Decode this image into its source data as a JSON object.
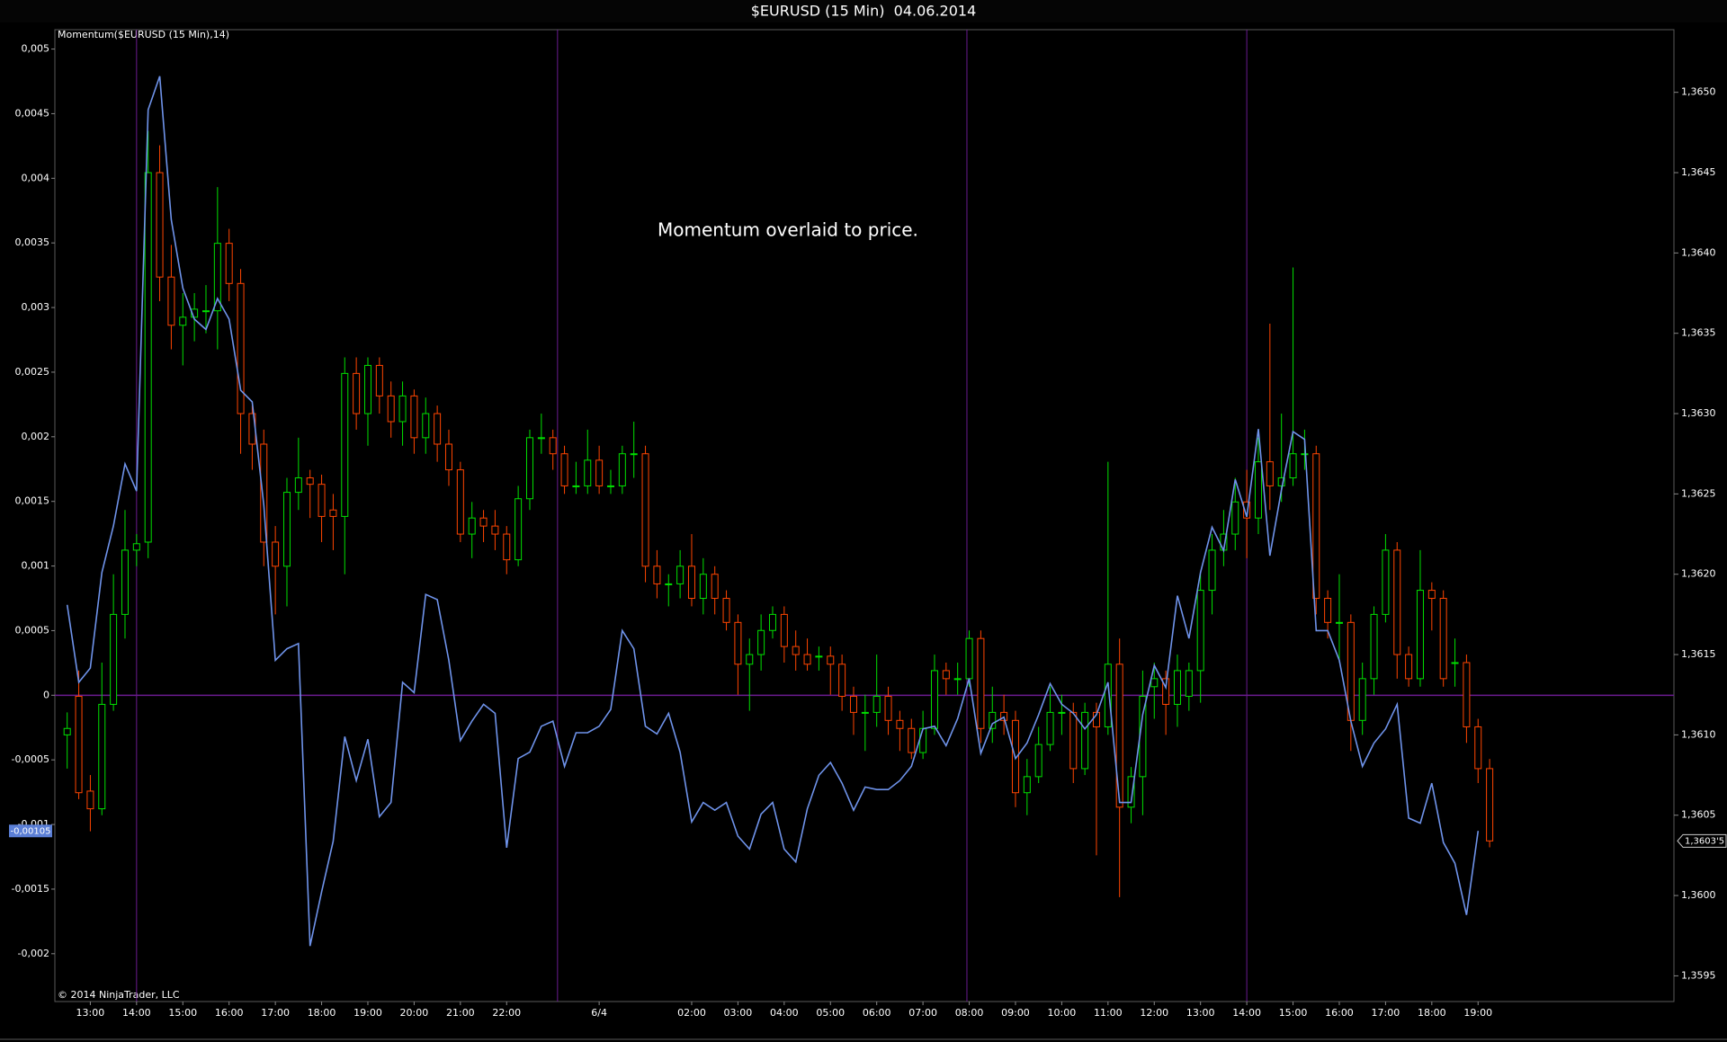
{
  "chart_data": {
    "type": "candlestick",
    "title": "$EURUSD (15 Min)  04.06.2014",
    "indicator_label": "Momentum($EURUSD (15 Min),14)",
    "annotation": "Momentum overlaid to price.",
    "copyright": "© 2014 NinjaTrader, LLC",
    "categories": [
      null,
      null,
      "13:00",
      null,
      null,
      null,
      "14:00",
      null,
      null,
      null,
      "15:00",
      null,
      null,
      null,
      "16:00",
      null,
      null,
      null,
      "17:00",
      null,
      null,
      null,
      "18:00",
      null,
      null,
      null,
      "19:00",
      null,
      null,
      null,
      "20:00",
      null,
      null,
      null,
      "21:00",
      null,
      null,
      null,
      "22:00",
      null,
      null,
      null,
      null,
      null,
      null,
      null,
      "6/4",
      null,
      null,
      null,
      null,
      null,
      null,
      null,
      "02:00",
      null,
      null,
      null,
      "03:00",
      null,
      null,
      null,
      "04:00",
      null,
      null,
      null,
      "05:00",
      null,
      null,
      null,
      "06:00",
      null,
      null,
      null,
      "07:00",
      null,
      null,
      null,
      "08:00",
      null,
      null,
      null,
      "09:00",
      null,
      null,
      null,
      "10:00",
      null,
      null,
      null,
      "11:00",
      null,
      null,
      null,
      "12:00",
      null,
      null,
      null,
      "13:00",
      null,
      null,
      null,
      "14:00",
      null,
      null,
      null,
      "15:00",
      null,
      null,
      null,
      "16:00",
      null,
      null,
      null,
      "17:00",
      null,
      null,
      null,
      "18:00",
      null,
      null,
      null,
      "19:00",
      null
    ],
    "price": {
      "axis": "y2",
      "up_color": "#00e000",
      "down_color": "#ff4500",
      "open": [
        1.361,
        1.36124,
        1.36065,
        1.36054,
        1.36119,
        1.36175,
        1.36215,
        1.3622,
        1.3645,
        1.36385,
        1.36355,
        1.3636,
        1.36364,
        1.36364,
        1.36406,
        1.36381,
        1.363,
        1.36281,
        1.3622,
        1.36205,
        1.36251,
        1.3626,
        1.36256,
        1.3624,
        1.36236,
        1.36325,
        1.363,
        1.3633,
        1.36311,
        1.36295,
        1.36311,
        1.36285,
        1.363,
        1.36281,
        1.36265,
        1.36225,
        1.36235,
        1.3623,
        1.36225,
        1.36209,
        1.36247,
        1.36285,
        1.36285,
        1.36275,
        1.36255,
        1.36255,
        1.36271,
        1.36255,
        1.36255,
        1.36275,
        1.36275,
        1.36205,
        1.36194,
        1.36194,
        1.36205,
        1.36185,
        1.362,
        1.36185,
        1.3617,
        1.36144,
        1.3615,
        1.36165,
        1.36175,
        1.36155,
        1.3615,
        1.36149,
        1.36149,
        1.36144,
        1.36124,
        1.36114,
        1.36114,
        1.36124,
        1.36109,
        1.36104,
        1.36089,
        1.36104,
        1.3614,
        1.36135,
        1.36135,
        1.3616,
        1.36104,
        1.36114,
        1.36109,
        1.36064,
        1.36074,
        1.36094,
        1.36114,
        1.36114,
        1.36079,
        1.36114,
        1.36105,
        1.36144,
        1.36055,
        1.36074,
        1.3613,
        1.36135,
        1.36119,
        1.36124,
        1.3614,
        1.3619,
        1.36215,
        1.36225,
        1.36245,
        1.36235,
        1.3627,
        1.36255,
        1.3626,
        1.36275,
        1.36275,
        1.36185,
        1.3617,
        1.3617,
        1.36109,
        1.36135,
        1.36175,
        1.36215,
        1.3615,
        1.36135,
        1.3619,
        1.36185,
        1.36145,
        1.36145,
        1.36105,
        1.36079
      ],
      "high": [
        1.36114,
        1.3614,
        1.36075,
        1.36145,
        1.362,
        1.3624,
        1.36225,
        1.36476,
        1.36467,
        1.36405,
        1.36375,
        1.36375,
        1.3638,
        1.36441,
        1.36415,
        1.3639,
        1.36305,
        1.3629,
        1.3623,
        1.3626,
        1.36285,
        1.36265,
        1.36262,
        1.3625,
        1.36335,
        1.36335,
        1.36335,
        1.36335,
        1.3632,
        1.3632,
        1.36315,
        1.3631,
        1.36305,
        1.3629,
        1.3627,
        1.36245,
        1.3624,
        1.3624,
        1.3623,
        1.36255,
        1.3629,
        1.363,
        1.3629,
        1.3628,
        1.3627,
        1.3629,
        1.3628,
        1.36265,
        1.3628,
        1.36295,
        1.3628,
        1.36215,
        1.362,
        1.36215,
        1.36225,
        1.3621,
        1.36205,
        1.3619,
        1.36175,
        1.3616,
        1.36175,
        1.3618,
        1.3618,
        1.36165,
        1.3616,
        1.36155,
        1.36155,
        1.3615,
        1.3613,
        1.36125,
        1.3615,
        1.3613,
        1.36115,
        1.3611,
        1.36115,
        1.3615,
        1.36145,
        1.36145,
        1.36165,
        1.36165,
        1.3613,
        1.36125,
        1.36115,
        1.36085,
        1.36105,
        1.3613,
        1.36125,
        1.3612,
        1.3612,
        1.3612,
        1.3627,
        1.3616,
        1.3608,
        1.3614,
        1.36145,
        1.3614,
        1.3615,
        1.36145,
        1.362,
        1.36225,
        1.3624,
        1.3626,
        1.36265,
        1.36285,
        1.36356,
        1.363,
        1.36391,
        1.3629,
        1.3628,
        1.3619,
        1.362,
        1.36175,
        1.36145,
        1.3618,
        1.36225,
        1.3622,
        1.36155,
        1.36215,
        1.36195,
        1.3619,
        1.3616,
        1.3615,
        1.3611,
        1.36085
      ],
      "low": [
        1.36079,
        1.3606,
        1.3604,
        1.3605,
        1.36115,
        1.3616,
        1.36205,
        1.3621,
        1.3637,
        1.3634,
        1.3633,
        1.36345,
        1.3635,
        1.3634,
        1.3637,
        1.36275,
        1.36265,
        1.36205,
        1.36175,
        1.3618,
        1.3624,
        1.36235,
        1.3622,
        1.36215,
        1.362,
        1.3629,
        1.3628,
        1.363,
        1.36285,
        1.3628,
        1.36275,
        1.36275,
        1.3627,
        1.36255,
        1.3622,
        1.3621,
        1.3622,
        1.36215,
        1.362,
        1.36205,
        1.3624,
        1.36275,
        1.36265,
        1.3625,
        1.3625,
        1.3625,
        1.3625,
        1.3625,
        1.3625,
        1.3626,
        1.36195,
        1.36185,
        1.3618,
        1.36185,
        1.3618,
        1.36175,
        1.36175,
        1.36165,
        1.36125,
        1.36115,
        1.3614,
        1.3616,
        1.36145,
        1.3614,
        1.3614,
        1.3614,
        1.36125,
        1.36115,
        1.361,
        1.3609,
        1.36105,
        1.361,
        1.3609,
        1.36085,
        1.36085,
        1.361,
        1.36125,
        1.36125,
        1.3613,
        1.36095,
        1.36095,
        1.361,
        1.36055,
        1.3605,
        1.3607,
        1.3609,
        1.361,
        1.3607,
        1.36075,
        1.36025,
        1.361,
        1.35999,
        1.36045,
        1.3605,
        1.3611,
        1.361,
        1.36105,
        1.36115,
        1.3612,
        1.36175,
        1.36205,
        1.36215,
        1.3621,
        1.36225,
        1.3624,
        1.36245,
        1.36255,
        1.36265,
        1.36175,
        1.3616,
        1.36145,
        1.3609,
        1.361,
        1.36125,
        1.3617,
        1.36135,
        1.3613,
        1.3613,
        1.36165,
        1.3613,
        1.3613,
        1.36095,
        1.3607,
        1.3603
      ],
      "close": [
        1.36104,
        1.36064,
        1.36054,
        1.36119,
        1.36175,
        1.36215,
        1.36219,
        1.3645,
        1.36385,
        1.36355,
        1.3636,
        1.36365,
        1.36364,
        1.36406,
        1.36381,
        1.363,
        1.36281,
        1.3622,
        1.36205,
        1.36251,
        1.3626,
        1.36256,
        1.36236,
        1.36236,
        1.36325,
        1.363,
        1.3633,
        1.36311,
        1.36295,
        1.36311,
        1.36285,
        1.363,
        1.36281,
        1.36265,
        1.36225,
        1.36235,
        1.3623,
        1.36225,
        1.36209,
        1.36247,
        1.36285,
        1.36285,
        1.36275,
        1.36255,
        1.36255,
        1.36271,
        1.36255,
        1.36255,
        1.36275,
        1.36275,
        1.36205,
        1.36194,
        1.36194,
        1.36205,
        1.36185,
        1.362,
        1.36185,
        1.3617,
        1.36144,
        1.3615,
        1.36165,
        1.36175,
        1.36155,
        1.3615,
        1.36144,
        1.36149,
        1.36144,
        1.36124,
        1.36114,
        1.36114,
        1.36124,
        1.36109,
        1.36104,
        1.36089,
        1.36104,
        1.3614,
        1.36135,
        1.36135,
        1.3616,
        1.36104,
        1.36114,
        1.36109,
        1.36064,
        1.36074,
        1.36094,
        1.36114,
        1.36114,
        1.36079,
        1.36114,
        1.36105,
        1.36144,
        1.36055,
        1.36074,
        1.36124,
        1.36135,
        1.36119,
        1.3614,
        1.3614,
        1.3619,
        1.36215,
        1.36225,
        1.36245,
        1.36235,
        1.3627,
        1.36255,
        1.3626,
        1.36275,
        1.36275,
        1.36185,
        1.3617,
        1.3617,
        1.36109,
        1.36135,
        1.36175,
        1.36215,
        1.3615,
        1.36135,
        1.3619,
        1.36185,
        1.36135,
        1.36145,
        1.36105,
        1.36079,
        1.36034
      ]
    },
    "momentum": {
      "name": "Momentum",
      "color": "#6f93ea",
      "values": [
        0.0007,
        0.0001,
        0.00021,
        0.00095,
        0.00131,
        0.00179,
        0.00158,
        0.00453,
        0.00479,
        0.00368,
        0.00315,
        0.00291,
        0.00283,
        0.00307,
        0.00291,
        0.00236,
        0.00227,
        0.00147,
        0.00027,
        0.00036,
        0.0004,
        -0.00194,
        -0.00152,
        -0.00113,
        -0.00032,
        -0.00066,
        -0.00034,
        -0.00094,
        -0.00083,
        0.0001,
        2e-05,
        0.00078,
        0.00074,
        0.00027,
        -0.00035,
        -0.0002,
        -7e-05,
        -0.00014,
        -0.00118,
        -0.00049,
        -0.00044,
        -0.00024,
        -0.0002,
        -0.00055,
        -0.00029,
        -0.00029,
        -0.00024,
        -0.00011,
        0.0005,
        0.00036,
        -0.00024,
        -0.0003,
        -0.00014,
        -0.00044,
        -0.00098,
        -0.00083,
        -0.00089,
        -0.00083,
        -0.00109,
        -0.00119,
        -0.00092,
        -0.00083,
        -0.00119,
        -0.00129,
        -0.00088,
        -0.00062,
        -0.00052,
        -0.00068,
        -0.00089,
        -0.00071,
        -0.00073,
        -0.00073,
        -0.00066,
        -0.00055,
        -0.00026,
        -0.00024,
        -0.00039,
        -0.00018,
        0.00013,
        -0.00045,
        -0.00022,
        -0.00017,
        -0.00049,
        -0.00037,
        -0.00015,
        9e-05,
        -7e-05,
        -0.00014,
        -0.00026,
        -0.00015,
        0.0001,
        -0.00083,
        -0.00083,
        -0.00015,
        0.00023,
        6e-05,
        0.00077,
        0.00044,
        0.00095,
        0.0013,
        0.00112,
        0.00167,
        0.00138,
        0.00206,
        0.00108,
        0.00159,
        0.00204,
        0.00198,
        0.0005,
        0.0005,
        0.00027,
        -0.0002,
        -0.00055,
        -0.00037,
        -0.00026,
        -7e-05,
        -0.00095,
        -0.00099,
        -0.00068,
        -0.00114,
        -0.0013,
        -0.0017,
        -0.00105,
        null
      ]
    },
    "last_labels": {
      "momentum": "-0,00105",
      "price": "1,3603'5"
    },
    "ylim": [
      -0.00237,
      0.00515
    ],
    "yticks": [
      {
        "value": -0.002,
        "label": "-0,002"
      },
      {
        "value": -0.0015,
        "label": "-0,0015"
      },
      {
        "value": -0.001,
        "label": "-0,001"
      },
      {
        "value": -0.0005,
        "label": "-0,0005"
      },
      0,
      {
        "value": 0.0005,
        "label": "0,0005"
      },
      {
        "value": 0.001,
        "label": "0,001"
      },
      {
        "value": 0.0015,
        "label": "0,0015"
      },
      {
        "value": 0.002,
        "label": "0,002"
      },
      {
        "value": 0.0025,
        "label": "0,0025"
      },
      {
        "value": 0.003,
        "label": "0,003"
      },
      {
        "value": 0.0035,
        "label": "0,0035"
      },
      {
        "value": 0.004,
        "label": "0,004"
      },
      {
        "value": 0.0045,
        "label": "0,0045"
      },
      {
        "value": 0.005,
        "label": "0,005"
      }
    ],
    "y2lim": [
      1.35934,
      1.36539
    ],
    "y2ticks": [
      {
        "value": 1.3595,
        "label": "1,3595"
      },
      {
        "value": 1.36,
        "label": "1,3600"
      },
      {
        "value": 1.3605,
        "label": "1,3605"
      },
      {
        "value": 1.361,
        "label": "1,3610"
      },
      {
        "value": 1.3615,
        "label": "1,3615"
      },
      {
        "value": 1.362,
        "label": "1,3620"
      },
      {
        "value": 1.3625,
        "label": "1,3625"
      },
      {
        "value": 1.363,
        "label": "1,3630"
      },
      {
        "value": 1.3635,
        "label": "1,3635"
      },
      {
        "value": 1.364,
        "label": "1,3640"
      },
      {
        "value": 1.3645,
        "label": "1,3645"
      },
      {
        "value": 1.365,
        "label": "1,3650"
      }
    ],
    "zero_line_color": "#6a1b8f"
  }
}
